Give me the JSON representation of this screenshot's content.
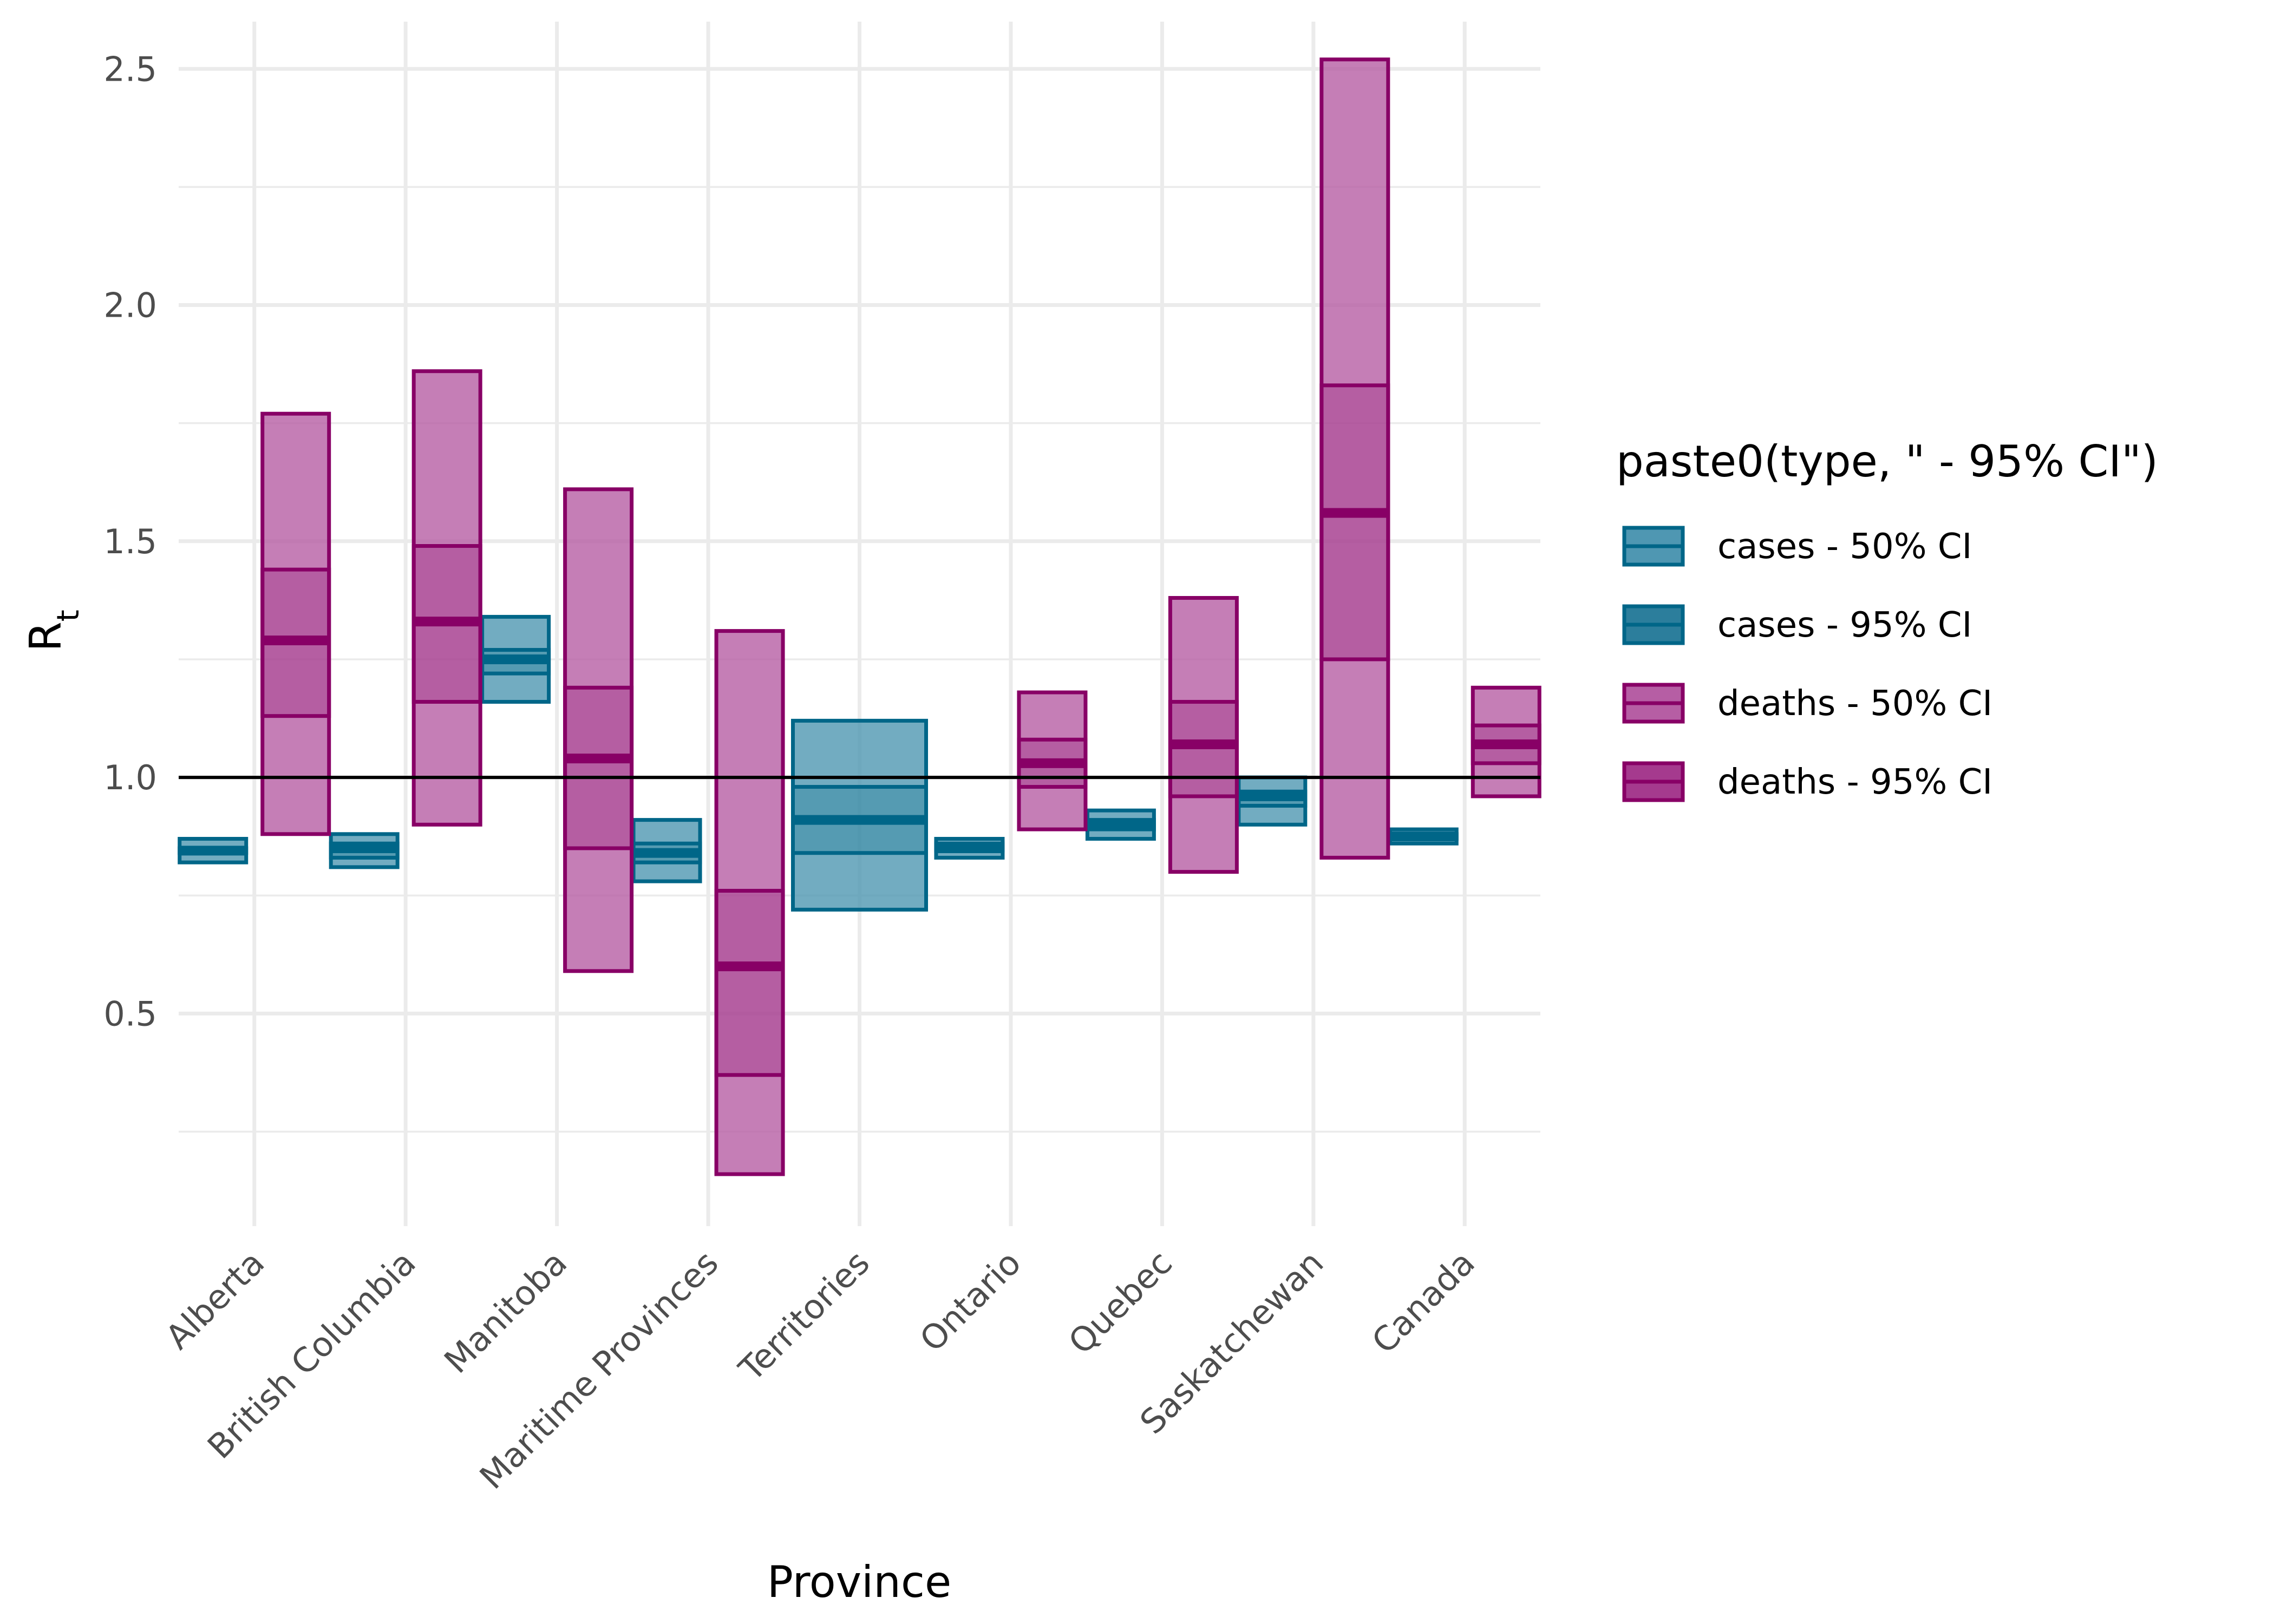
{
  "chart_data": {
    "type": "crossbar",
    "xlabel": "Province",
    "ylabel": "R",
    "ylabel_subscript": "t",
    "ylim": [
      0.05,
      2.6
    ],
    "yticks": [
      0.5,
      1.0,
      1.5,
      2.0,
      2.5
    ],
    "ytick_labels": [
      "0.5",
      "1.0",
      "1.5",
      "2.0",
      "2.5"
    ],
    "reference_line": 1.0,
    "grid": true,
    "categories": [
      "Alberta",
      "British Columbia",
      "Manitoba",
      "Maritime Provinces",
      "Territories",
      "Ontario",
      "Quebec",
      "Saskatchewan",
      "Canada"
    ],
    "legend": {
      "title": "paste0(type, \" - 95% CI\")",
      "placement": "right",
      "items": [
        {
          "label": "cases - 50% CI",
          "fill": "#4f97b2",
          "stroke": "#006688"
        },
        {
          "label": "cases - 95% CI",
          "fill": "#2c7e9c",
          "stroke": "#006688"
        },
        {
          "label": "deaths - 50% CI",
          "fill": "#b65ea4",
          "stroke": "#880066"
        },
        {
          "label": "deaths - 95% CI",
          "fill": "#a53a8e",
          "stroke": "#880066"
        }
      ]
    },
    "colors": {
      "cases_stroke": "#006688",
      "cases_fill": "#4f97b2",
      "deaths_stroke": "#880066",
      "deaths_fill": "#b65ea4"
    },
    "series": [
      {
        "name": "cases",
        "values": [
          {
            "category": "Alberta",
            "low95": 0.82,
            "low50": 0.84,
            "median": 0.845,
            "high50": 0.85,
            "high95": 0.87
          },
          {
            "category": "British Columbia",
            "low95": 0.81,
            "low50": 0.83,
            "median": 0.85,
            "high50": 0.86,
            "high95": 0.88
          },
          {
            "category": "Manitoba",
            "low95": 1.16,
            "low50": 1.22,
            "median": 1.25,
            "high50": 1.27,
            "high95": 1.34
          },
          {
            "category": "Maritime Provinces",
            "low95": 0.78,
            "low50": 0.82,
            "median": 0.84,
            "high50": 0.86,
            "high95": 0.91
          },
          {
            "category": "Territories",
            "low95": 0.72,
            "low50": 0.84,
            "median": 0.91,
            "high50": 0.98,
            "high95": 1.12
          },
          {
            "category": "Ontario",
            "low95": 0.83,
            "low50": 0.845,
            "median": 0.85,
            "high50": 0.86,
            "high95": 0.87
          },
          {
            "category": "Quebec",
            "low95": 0.87,
            "low50": 0.89,
            "median": 0.9,
            "high50": 0.91,
            "high95": 0.93
          },
          {
            "category": "Saskatchewan",
            "low95": 0.9,
            "low50": 0.94,
            "median": 0.96,
            "high50": 0.97,
            "high95": 1.0
          },
          {
            "category": "Canada",
            "low95": 0.86,
            "low50": 0.87,
            "median": 0.875,
            "high50": 0.88,
            "high95": 0.89
          }
        ]
      },
      {
        "name": "deaths",
        "values": [
          {
            "category": "Alberta",
            "low95": 0.88,
            "low50": 1.13,
            "median": 1.29,
            "high50": 1.44,
            "high95": 1.77
          },
          {
            "category": "British Columbia",
            "low95": 0.9,
            "low50": 1.16,
            "median": 1.33,
            "high50": 1.49,
            "high95": 1.86
          },
          {
            "category": "Manitoba",
            "low95": 0.59,
            "low50": 0.85,
            "median": 1.04,
            "high50": 1.19,
            "high95": 1.61
          },
          {
            "category": "Maritime Provinces",
            "low95": 0.16,
            "low50": 0.37,
            "median": 0.6,
            "high50": 0.76,
            "high95": 1.31
          },
          {
            "category": "Ontario",
            "low95": 0.89,
            "low50": 0.98,
            "median": 1.03,
            "high50": 1.08,
            "high95": 1.18
          },
          {
            "category": "Quebec",
            "low95": 0.8,
            "low50": 0.96,
            "median": 1.07,
            "high50": 1.16,
            "high95": 1.38
          },
          {
            "category": "Saskatchewan",
            "low95": 0.83,
            "low50": 1.25,
            "median": 1.56,
            "high50": 1.83,
            "high95": 2.52
          },
          {
            "category": "Canada",
            "low95": 0.96,
            "low50": 1.03,
            "median": 1.07,
            "high50": 1.11,
            "high95": 1.19
          }
        ]
      }
    ]
  }
}
